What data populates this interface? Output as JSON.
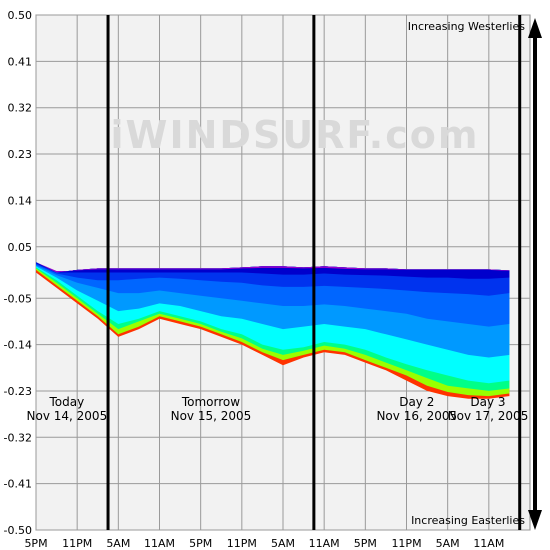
{
  "chart_data": {
    "type": "area",
    "title": "",
    "ylim": [
      -0.5,
      0.5
    ],
    "y_ticks": [
      "0.50",
      "0.41",
      "0.32",
      "0.23",
      "0.14",
      "0.05",
      "-0.05",
      "-0.14",
      "-0.23",
      "-0.32",
      "-0.41",
      "-0.50"
    ],
    "y_tick_values": [
      0.5,
      0.41,
      0.32,
      0.23,
      0.14,
      0.05,
      -0.05,
      -0.14,
      -0.23,
      -0.32,
      -0.41,
      -0.5
    ],
    "x_ticks": [
      "5PM",
      "11PM",
      "5AM",
      "11AM",
      "5PM",
      "11PM",
      "5AM",
      "11AM",
      "5PM",
      "11PM",
      "5AM",
      "11AM"
    ],
    "x_tick_hours": [
      0,
      6,
      12,
      18,
      24,
      30,
      36,
      42,
      48,
      54,
      60,
      66
    ],
    "x_range_hours": [
      0,
      72
    ],
    "grid": true,
    "day_dividers_hours": [
      10.5,
      40.5,
      70.5
    ],
    "days": [
      {
        "name": "Today",
        "date": "Nov 14, 2005",
        "hour": 4.5
      },
      {
        "name": "Tomorrow",
        "date": "Nov 15, 2005",
        "hour": 25.5
      },
      {
        "name": "Day 2",
        "date": "Nov 16, 2005",
        "hour": 55.5
      },
      {
        "name": "Day 3",
        "date": "Nov 17, 2005",
        "hour": 78
      },
      {
        "name": "",
        "date": "",
        "hour": 0
      }
    ],
    "annotations": {
      "top": "Increasing Westerlies",
      "bottom": "Increasing Easterlies"
    },
    "watermark": "iWINDSURF.com",
    "x": [
      0,
      3,
      6,
      9,
      12,
      15,
      18,
      21,
      24,
      27,
      30,
      33,
      36,
      39,
      42,
      45,
      48,
      51,
      54,
      57,
      60,
      63,
      66,
      69
    ],
    "upper_envelope": [
      0.02,
      0.0,
      0.005,
      0.008,
      0.008,
      0.008,
      0.008,
      0.008,
      0.008,
      0.008,
      0.01,
      0.012,
      0.012,
      0.01,
      0.012,
      0.01,
      0.008,
      0.008,
      0.006,
      0.006,
      0.006,
      0.006,
      0.006,
      0.004
    ],
    "series": [
      {
        "color": "#ff3300",
        "values": [
          0.0,
          -0.03,
          -0.06,
          -0.09,
          -0.125,
          -0.11,
          -0.09,
          -0.1,
          -0.11,
          -0.125,
          -0.14,
          -0.16,
          -0.18,
          -0.165,
          -0.155,
          -0.16,
          -0.175,
          -0.19,
          -0.21,
          -0.23,
          -0.24,
          -0.245,
          -0.245,
          -0.24
        ]
      },
      {
        "color": "#99ff00",
        "values": [
          0.005,
          -0.025,
          -0.055,
          -0.085,
          -0.12,
          -0.105,
          -0.085,
          -0.095,
          -0.105,
          -0.12,
          -0.135,
          -0.155,
          -0.17,
          -0.16,
          -0.15,
          -0.155,
          -0.17,
          -0.185,
          -0.2,
          -0.22,
          -0.232,
          -0.238,
          -0.24,
          -0.235
        ]
      },
      {
        "color": "#00ff88",
        "values": [
          0.008,
          -0.02,
          -0.05,
          -0.08,
          -0.11,
          -0.095,
          -0.08,
          -0.09,
          -0.1,
          -0.115,
          -0.128,
          -0.148,
          -0.16,
          -0.152,
          -0.142,
          -0.148,
          -0.16,
          -0.175,
          -0.19,
          -0.205,
          -0.22,
          -0.225,
          -0.23,
          -0.225
        ]
      },
      {
        "color": "#00ffff",
        "values": [
          0.01,
          -0.015,
          -0.045,
          -0.075,
          -0.1,
          -0.09,
          -0.075,
          -0.085,
          -0.095,
          -0.11,
          -0.12,
          -0.14,
          -0.15,
          -0.145,
          -0.135,
          -0.14,
          -0.15,
          -0.165,
          -0.178,
          -0.19,
          -0.2,
          -0.21,
          -0.215,
          -0.21
        ]
      },
      {
        "color": "#0099ff",
        "values": [
          0.012,
          -0.01,
          -0.035,
          -0.055,
          -0.075,
          -0.07,
          -0.06,
          -0.065,
          -0.075,
          -0.085,
          -0.09,
          -0.1,
          -0.11,
          -0.105,
          -0.1,
          -0.105,
          -0.11,
          -0.12,
          -0.13,
          -0.14,
          -0.15,
          -0.16,
          -0.165,
          -0.16
        ]
      },
      {
        "color": "#0066ff",
        "values": [
          0.014,
          -0.005,
          -0.02,
          -0.03,
          -0.04,
          -0.04,
          -0.035,
          -0.04,
          -0.045,
          -0.05,
          -0.055,
          -0.06,
          -0.065,
          -0.065,
          -0.062,
          -0.065,
          -0.07,
          -0.075,
          -0.08,
          -0.09,
          -0.095,
          -0.1,
          -0.105,
          -0.1
        ]
      },
      {
        "color": "#0033ee",
        "values": [
          0.016,
          -0.002,
          -0.01,
          -0.015,
          -0.015,
          -0.012,
          -0.01,
          -0.012,
          -0.015,
          -0.018,
          -0.02,
          -0.025,
          -0.028,
          -0.028,
          -0.026,
          -0.028,
          -0.03,
          -0.032,
          -0.035,
          -0.038,
          -0.04,
          -0.042,
          -0.045,
          -0.04
        ]
      },
      {
        "color": "#0000cc",
        "values": [
          0.018,
          0.0,
          0.0,
          0.0,
          0.0,
          0.0,
          0.0,
          0.0,
          0.0,
          0.0,
          0.0,
          -0.002,
          -0.004,
          -0.004,
          -0.002,
          -0.004,
          -0.005,
          -0.006,
          -0.008,
          -0.01,
          -0.01,
          -0.012,
          -0.012,
          -0.01
        ]
      },
      {
        "color": "#9900cc",
        "values": [
          0.02,
          0.003,
          0.004,
          0.006,
          0.006,
          0.006,
          0.006,
          0.006,
          0.006,
          0.006,
          0.008,
          0.009,
          0.009,
          0.008,
          0.009,
          0.007,
          0.006,
          0.006,
          0.005,
          0.005,
          0.005,
          0.005,
          0.005,
          0.003
        ]
      }
    ]
  }
}
